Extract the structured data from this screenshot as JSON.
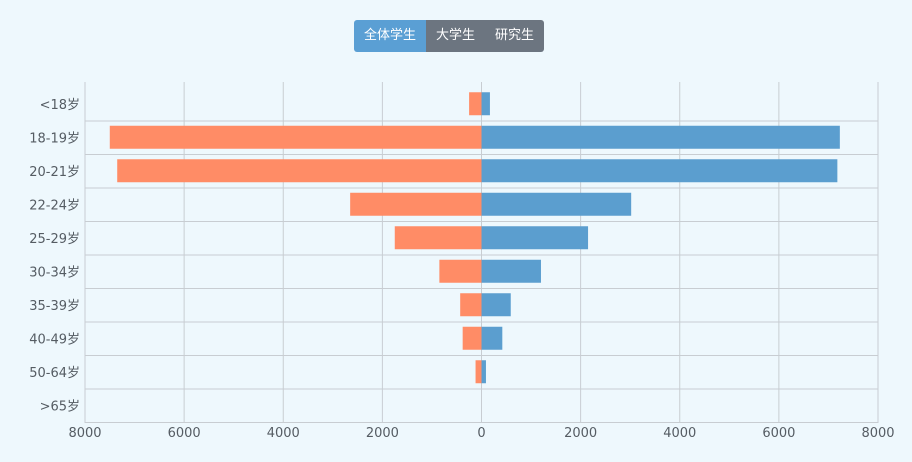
{
  "filter_tabs": {
    "all": "全体学生",
    "undergrad": "大学生",
    "graduate": "研究生",
    "active": "all"
  },
  "colors": {
    "left_series": "#ff8c66",
    "right_series": "#5b9ecf",
    "grid": "#c8cdd2",
    "background": "#eef8fd"
  },
  "chart_data": {
    "type": "bar",
    "orientation": "horizontal-diverging",
    "categories": [
      "<18岁",
      "18-19岁",
      "20-21岁",
      "22-24岁",
      "25-29岁",
      "30-34岁",
      "35-39岁",
      "40-49岁",
      "50-64岁",
      ">65岁"
    ],
    "series": [
      {
        "values": [
          250,
          7500,
          7350,
          2650,
          1750,
          850,
          430,
          380,
          120,
          0
        ]
      },
      {
        "values": [
          170,
          7230,
          7180,
          3020,
          2150,
          1200,
          590,
          420,
          90,
          0
        ]
      }
    ],
    "xlim": [
      -8000,
      8000
    ],
    "xticks": [
      -8000,
      -6000,
      -4000,
      -2000,
      0,
      2000,
      4000,
      6000,
      8000
    ],
    "xtick_labels": [
      "8000",
      "6000",
      "4000",
      "2000",
      "0",
      "2000",
      "4000",
      "6000",
      "8000"
    ],
    "grid": true,
    "legend": "none"
  }
}
